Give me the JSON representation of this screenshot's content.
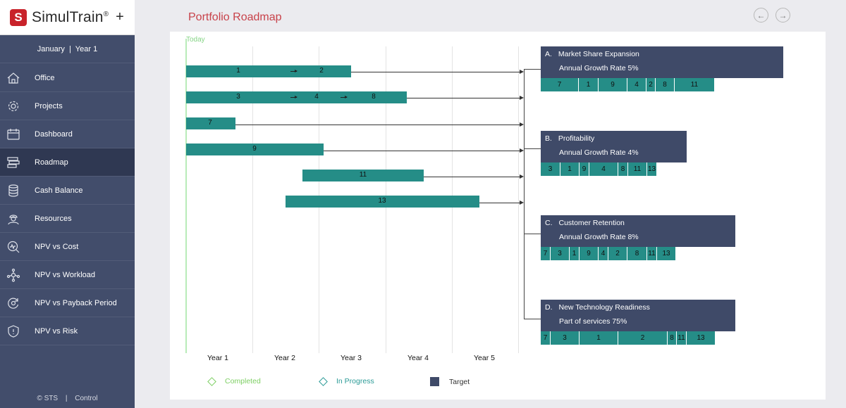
{
  "brand": {
    "logo_letter": "S",
    "name": "SimulTrain",
    "reg_mark": "®",
    "plus": "+"
  },
  "period": {
    "month": "January",
    "separator": "|",
    "year": "Year 1"
  },
  "nav": [
    {
      "label": "Office",
      "icon": "office-icon"
    },
    {
      "label": "Projects",
      "icon": "gear-icon"
    },
    {
      "label": "Dashboard",
      "icon": "calendar-icon"
    },
    {
      "label": "Roadmap",
      "icon": "roadmap-icon",
      "active": true
    },
    {
      "label": "Cash Balance",
      "icon": "coin-stack-icon"
    },
    {
      "label": "Resources",
      "icon": "worker-icon"
    },
    {
      "label": "NPV vs Cost",
      "icon": "magnifier-chart-icon"
    },
    {
      "label": "NPV vs Workload",
      "icon": "network-icon"
    },
    {
      "label": "NPV vs Payback Period",
      "icon": "cycle-icon"
    },
    {
      "label": "NPV vs Risk",
      "icon": "shield-icon"
    }
  ],
  "footer": {
    "copyright": "© STS",
    "divider": "|",
    "control": "Control"
  },
  "header": {
    "title": "Portfolio Roadmap",
    "prev_symbol": "←",
    "next_symbol": "→"
  },
  "chart": {
    "today_label": "Today",
    "years": [
      "Year 1",
      "Year 2",
      "Year 3",
      "Year 4",
      "Year 5"
    ],
    "rows": [
      {
        "segments": [
          "1",
          "2"
        ]
      },
      {
        "segments": [
          "3",
          "4",
          "8"
        ]
      },
      {
        "segments": [
          "7"
        ]
      },
      {
        "segments": [
          "9"
        ]
      },
      {
        "segments": [
          "11"
        ]
      },
      {
        "segments": [
          "13"
        ]
      }
    ]
  },
  "targets": [
    {
      "letter": "A.",
      "title": "Market Share Expansion",
      "subtitle": "Annual Growth Rate 5%",
      "chips": [
        "7",
        "1",
        "9",
        "4",
        "2",
        "8",
        "11"
      ]
    },
    {
      "letter": "B.",
      "title": "Profitability",
      "subtitle": "Annual Growth Rate 4%",
      "chips": [
        "3",
        "1",
        "9",
        "4",
        "8",
        "11",
        "13"
      ]
    },
    {
      "letter": "C.",
      "title": "Customer Retention",
      "subtitle": "Annual Growth Rate 8%",
      "chips": [
        "7",
        "3",
        "1",
        "9",
        "4",
        "2",
        "8",
        "11",
        "13"
      ]
    },
    {
      "letter": "D.",
      "title": "New Technology Readiness",
      "subtitle": "Part of services 75%",
      "chips": [
        "7",
        "3",
        "1",
        "2",
        "8",
        "11",
        "13"
      ]
    }
  ],
  "legend": [
    {
      "label": "Completed",
      "color": "#7dcf63"
    },
    {
      "label": "In Progress",
      "color": "#2a9a96"
    },
    {
      "label": "Target",
      "color": "#3f4a68"
    }
  ]
}
